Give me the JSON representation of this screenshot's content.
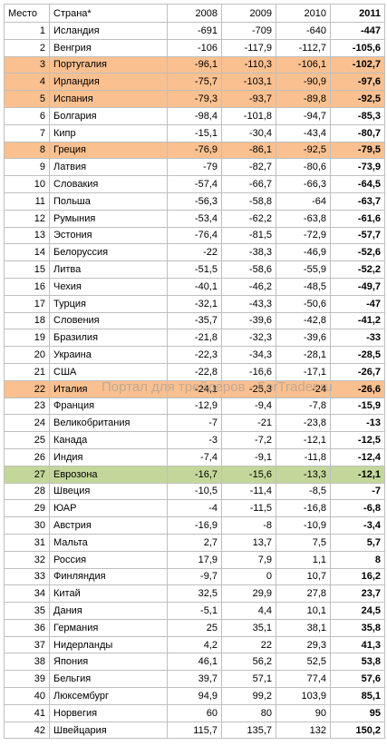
{
  "table": {
    "header": [
      "Место",
      "Страна*",
      "2008",
      "2009",
      "2010",
      "2011"
    ],
    "rows": [
      {
        "rank": 1,
        "country": "Исландия",
        "values": [
          "-691",
          "-709",
          "-640",
          "-447"
        ]
      },
      {
        "rank": 2,
        "country": "Венгрия",
        "values": [
          "-106",
          "-117,9",
          "-112,7",
          "-105,6"
        ]
      },
      {
        "rank": 3,
        "country": "Португалия",
        "values": [
          "-96,1",
          "-110,3",
          "-106,1",
          "-102,7"
        ],
        "color": "#fac090"
      },
      {
        "rank": 4,
        "country": "Ирландия",
        "values": [
          "-75,7",
          "-103,1",
          "-90,9",
          "-97,6"
        ],
        "color": "#fac090"
      },
      {
        "rank": 5,
        "country": "Испания",
        "values": [
          "-79,3",
          "-93,7",
          "-89,8",
          "-92,5"
        ],
        "color": "#fac090"
      },
      {
        "rank": 6,
        "country": "Болгария",
        "values": [
          "-98,4",
          "-101,8",
          "-94,7",
          "-85,3"
        ]
      },
      {
        "rank": 7,
        "country": "Кипр",
        "values": [
          "-15,1",
          "-30,4",
          "-43,4",
          "-80,7"
        ]
      },
      {
        "rank": 8,
        "country": "Греция",
        "values": [
          "-76,9",
          "-86,1",
          "-92,5",
          "-79,5"
        ],
        "color": "#fac090"
      },
      {
        "rank": 9,
        "country": "Латвия",
        "values": [
          "-79",
          "-82,7",
          "-80,6",
          "-73,9"
        ]
      },
      {
        "rank": 10,
        "country": "Словакия",
        "values": [
          "-57,4",
          "-66,7",
          "-66,3",
          "-64,5"
        ]
      },
      {
        "rank": 11,
        "country": "Польша",
        "values": [
          "-56,3",
          "-58,8",
          "-64",
          "-63,7"
        ]
      },
      {
        "rank": 12,
        "country": "Румыния",
        "values": [
          "-53,4",
          "-62,2",
          "-63,8",
          "-61,6"
        ]
      },
      {
        "rank": 13,
        "country": "Эстония",
        "values": [
          "-76,4",
          "-81,5",
          "-72,9",
          "-57,7"
        ]
      },
      {
        "rank": 14,
        "country": "Белоруссия",
        "values": [
          "-22",
          "-38,3",
          "-46,9",
          "-52,6"
        ]
      },
      {
        "rank": 15,
        "country": "Литва",
        "values": [
          "-51,5",
          "-58,6",
          "-55,9",
          "-52,2"
        ]
      },
      {
        "rank": 16,
        "country": "Чехия",
        "values": [
          "-40,1",
          "-46,2",
          "-48,5",
          "-49,7"
        ]
      },
      {
        "rank": 17,
        "country": "Турция",
        "values": [
          "-32,1",
          "-43,3",
          "-50,6",
          "-47"
        ]
      },
      {
        "rank": 18,
        "country": "Словения",
        "values": [
          "-35,7",
          "-39,6",
          "-42,8",
          "-41,2"
        ]
      },
      {
        "rank": 19,
        "country": "Бразилия",
        "values": [
          "-21,8",
          "-32,3",
          "-39,6",
          "-33"
        ]
      },
      {
        "rank": 20,
        "country": "Украина",
        "values": [
          "-22,3",
          "-34,3",
          "-28,1",
          "-28,5"
        ]
      },
      {
        "rank": 21,
        "country": "США",
        "values": [
          "-22,8",
          "-16,6",
          "-17,1",
          "-26,7"
        ]
      },
      {
        "rank": 22,
        "country": "Италия",
        "values": [
          "-24,1",
          "-25,3",
          "-24",
          "-26,6"
        ],
        "color": "#fac090"
      },
      {
        "rank": 23,
        "country": "Франция",
        "values": [
          "-12,9",
          "-9,4",
          "-7,8",
          "-15,9"
        ]
      },
      {
        "rank": 24,
        "country": "Великобритания",
        "values": [
          "-7",
          "-21",
          "-23,8",
          "-13"
        ]
      },
      {
        "rank": 25,
        "country": "Канада",
        "values": [
          "-3",
          "-7,2",
          "-12,1",
          "-12,5"
        ]
      },
      {
        "rank": 26,
        "country": "Индия",
        "values": [
          "-7,4",
          "-9,1",
          "-11,8",
          "-12,4"
        ]
      },
      {
        "rank": 27,
        "country": "Еврозона",
        "values": [
          "-16,7",
          "-15,6",
          "-13,3",
          "-12,1"
        ],
        "color": "#c4d79b"
      },
      {
        "rank": 28,
        "country": "Швеция",
        "values": [
          "-10,5",
          "-11,4",
          "-8,5",
          "-7"
        ]
      },
      {
        "rank": 29,
        "country": "ЮАР",
        "values": [
          "-4",
          "-11,5",
          "-16,8",
          "-6,8"
        ]
      },
      {
        "rank": 30,
        "country": "Австрия",
        "values": [
          "-16,9",
          "-8",
          "-10,9",
          "-3,4"
        ]
      },
      {
        "rank": 31,
        "country": "Мальта",
        "values": [
          "2,7",
          "13,7",
          "7,5",
          "5,7"
        ]
      },
      {
        "rank": 32,
        "country": "Россия",
        "values": [
          "17,9",
          "7,9",
          "1,1",
          "8"
        ]
      },
      {
        "rank": 33,
        "country": "Финляндия",
        "values": [
          "-9,7",
          "0",
          "10,7",
          "16,2"
        ]
      },
      {
        "rank": 34,
        "country": "Китай",
        "values": [
          "32,5",
          "29,9",
          "27,8",
          "23,7"
        ]
      },
      {
        "rank": 35,
        "country": "Дания",
        "values": [
          "-5,1",
          "4,4",
          "10,1",
          "24,5"
        ]
      },
      {
        "rank": 36,
        "country": "Германия",
        "values": [
          "25",
          "35,1",
          "38,1",
          "35,8"
        ]
      },
      {
        "rank": 37,
        "country": "Нидерланды",
        "values": [
          "4,2",
          "22",
          "29,3",
          "41,3"
        ]
      },
      {
        "rank": 38,
        "country": "Япония",
        "values": [
          "46,1",
          "56,2",
          "52,5",
          "53,8"
        ]
      },
      {
        "rank": 39,
        "country": "Бельгия",
        "values": [
          "39,7",
          "57,1",
          "77,4",
          "57,6"
        ]
      },
      {
        "rank": 40,
        "country": "Люксембург",
        "values": [
          "94,9",
          "99,2",
          "103,9",
          "85,1"
        ]
      },
      {
        "rank": 41,
        "country": "Норвегия",
        "values": [
          "60",
          "80",
          "90",
          "95"
        ]
      },
      {
        "rank": 42,
        "country": "Швейцария",
        "values": [
          "115,7",
          "135,7",
          "132",
          "150,2"
        ]
      }
    ]
  },
  "watermark": "Портал для трейдеров - ForTrader.ru"
}
